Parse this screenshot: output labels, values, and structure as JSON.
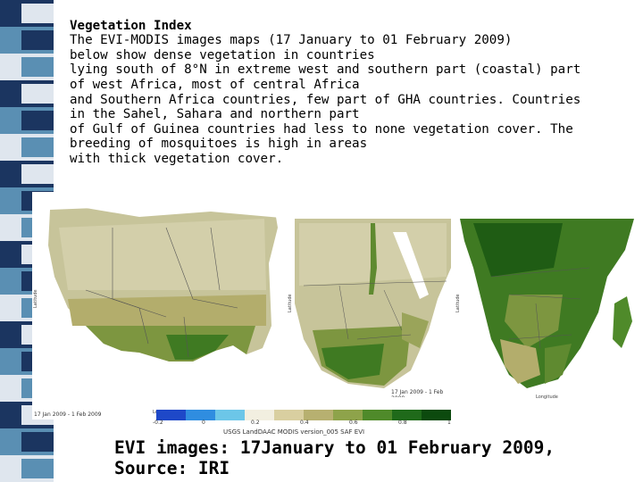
{
  "slide": {
    "title": "Vegetation Index",
    "body": "The EVI-MODIS images maps (17 January to 01 February 2009)\nbelow show dense vegetation in countries\nlying south of 8°N in extreme west and southern part (coastal) part\nof west Africa, most of central Africa\nand Southern Africa countries, few part of GHA countries. Countries\nin the Sahel, Sahara and northern part\nof Gulf of Guinea countries had less to none vegetation cover. The\nbreeding of mosquitoes is high in areas\nwith thick vegetation cover.",
    "caption": "EVI images: 17January to 01 February 2009,\nSource: IRI"
  },
  "maps": {
    "west_africa": {
      "date_label": "17 Jan 2009 - 1 Feb 2009",
      "axis_y": "Latitude",
      "axis_x": "Longitude"
    },
    "east_africa": {
      "date_label": "17 Jan 2009 - 1 Feb 2009",
      "axis_y": "Latitude",
      "axis_x": "Longitude"
    },
    "southern_africa": {
      "date_label": "17 Jan 2009 - 1 Feb 2009",
      "axis_y": "Latitude",
      "axis_x": "Longitude"
    }
  },
  "colorbar": {
    "ticks": [
      "-0.2",
      "0",
      "0.2",
      "0.4",
      "0.6",
      "0.8",
      "1"
    ],
    "source": "USGS LandDAAC MODIS version_005 SAF EVI",
    "colors": [
      "#1e48c8",
      "#2f8de0",
      "#6cc6e8",
      "#f2efe0",
      "#d9cfa0",
      "#b7b070",
      "#8ea34a",
      "#4f8a2a",
      "#1f6a1a",
      "#0c4a0e"
    ]
  },
  "colors": {
    "stripe_dark": "#1b3560",
    "stripe_mid": "#5a8fb3",
    "stripe_light": "#dfe6ee",
    "desert": "#c7c49a",
    "sahel": "#b3ad6c",
    "forest": "#3f7a22",
    "dense_forest": "#1f5c14",
    "water": "#ffffff"
  }
}
